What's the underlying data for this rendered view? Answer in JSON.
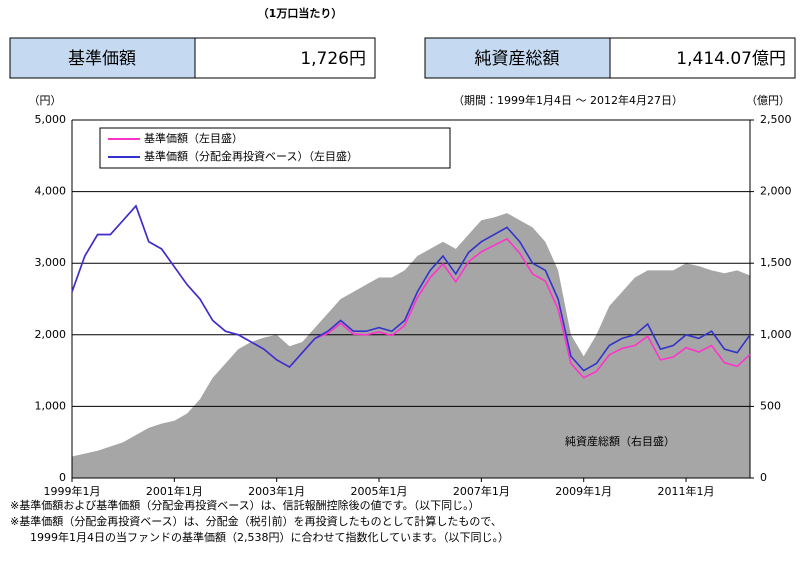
{
  "header": {
    "note": "（1万口当たり）",
    "items": [
      {
        "label": "基準価額",
        "value": "1,726円"
      },
      {
        "label": "純資産総額",
        "value": "1,414.07億円"
      }
    ]
  },
  "chart_data": {
    "type": "line",
    "subtitle": "（期間：1999年1月4日 ～ 2012年4月27日）",
    "ylabel": "（円）",
    "y2label": "（億円）",
    "x": [
      "1999-01",
      "1999-04",
      "1999-07",
      "1999-10",
      "2000-01",
      "2000-04",
      "2000-07",
      "2000-10",
      "2001-01",
      "2001-04",
      "2001-07",
      "2001-10",
      "2002-01",
      "2002-04",
      "2002-07",
      "2002-10",
      "2003-01",
      "2003-04",
      "2003-07",
      "2003-10",
      "2004-01",
      "2004-04",
      "2004-07",
      "2004-10",
      "2005-01",
      "2005-04",
      "2005-07",
      "2005-10",
      "2006-01",
      "2006-04",
      "2006-07",
      "2006-10",
      "2007-01",
      "2007-04",
      "2007-07",
      "2007-10",
      "2008-01",
      "2008-04",
      "2008-07",
      "2008-10",
      "2009-01",
      "2009-04",
      "2009-07",
      "2009-10",
      "2010-01",
      "2010-04",
      "2010-07",
      "2010-10",
      "2011-01",
      "2011-04",
      "2011-07",
      "2011-10",
      "2012-01",
      "2012-04"
    ],
    "xlim": [
      "1999-01",
      "2012-04"
    ],
    "xticks": [
      {
        "value": "1999-01",
        "label": "1999年1月"
      },
      {
        "value": "2001-01",
        "label": "2001年1月"
      },
      {
        "value": "2003-01",
        "label": "2003年1月"
      },
      {
        "value": "2005-01",
        "label": "2005年1月"
      },
      {
        "value": "2007-01",
        "label": "2007年1月"
      },
      {
        "value": "2009-01",
        "label": "2009年1月"
      },
      {
        "value": "2011-01",
        "label": "2011年1月"
      }
    ],
    "ylim": [
      0,
      5000
    ],
    "yticks": [
      0,
      {
        "value": 1000,
        "label": "1,000"
      },
      {
        "value": 2000,
        "label": "2,000"
      },
      {
        "value": 3000,
        "label": "3,000"
      },
      {
        "value": 4000,
        "label": "4,000"
      },
      {
        "value": 5000,
        "label": "5,000"
      }
    ],
    "y2lim": [
      0,
      2500
    ],
    "y2ticks": [
      0,
      500,
      {
        "value": 1000,
        "label": "1,000"
      },
      {
        "value": 1500,
        "label": "1,500"
      },
      {
        "value": 2000,
        "label": "2,000"
      },
      {
        "value": 2500,
        "label": "2,500"
      }
    ],
    "grid": true,
    "series": [
      {
        "name": "基準価額（左目盛）",
        "color": "#ff33cc",
        "values": [
          2600,
          3100,
          3400,
          3400,
          3600,
          3800,
          3300,
          3200,
          2950,
          2700,
          2500,
          2200,
          2050,
          2000,
          1900,
          1800,
          1650,
          1550,
          1750,
          1950,
          2020,
          2160,
          2010,
          2000,
          2040,
          1990,
          2130,
          2520,
          2800,
          2990,
          2740,
          3020,
          3160,
          3250,
          3340,
          3140,
          2850,
          2750,
          2360,
          1600,
          1400,
          1490,
          1720,
          1810,
          1850,
          1980,
          1650,
          1690,
          1820,
          1760,
          1850,
          1610,
          1560,
          1726
        ]
      },
      {
        "name": "基準価額（分配金再投資ベース）（左目盛）",
        "color": "#3333cc",
        "values": [
          2600,
          3100,
          3400,
          3400,
          3600,
          3800,
          3300,
          3200,
          2950,
          2700,
          2500,
          2200,
          2050,
          2000,
          1900,
          1800,
          1650,
          1550,
          1750,
          1950,
          2050,
          2200,
          2050,
          2050,
          2100,
          2050,
          2200,
          2600,
          2900,
          3100,
          2850,
          3150,
          3300,
          3400,
          3500,
          3300,
          3000,
          2900,
          2500,
          1700,
          1500,
          1600,
          1850,
          1950,
          2000,
          2150,
          1800,
          1850,
          2000,
          1950,
          2050,
          1800,
          1750,
          2000
        ]
      },
      {
        "name": "純資産総額（右目盛）",
        "color": "#a6a6a6",
        "axis": "y2",
        "values": [
          150,
          170,
          190,
          220,
          250,
          300,
          350,
          380,
          400,
          450,
          550,
          700,
          800,
          900,
          950,
          980,
          1000,
          920,
          950,
          1050,
          1150,
          1250,
          1300,
          1350,
          1400,
          1400,
          1450,
          1550,
          1600,
          1650,
          1600,
          1700,
          1800,
          1820,
          1850,
          1800,
          1750,
          1650,
          1450,
          1000,
          850,
          1000,
          1200,
          1300,
          1400,
          1450,
          1450,
          1450,
          1500,
          1480,
          1450,
          1430,
          1450,
          1414.07
        ]
      }
    ],
    "notes": [
      "※基準価額および基準価額（分配金再投資ベース）は、信託報酬控除後の値です。（以下同じ。）",
      "※基準価額（分配金再投資ベース）は、分配金（税引前）を再投資したものとして計算したもので、",
      "1999年1月4日の当ファンドの基準価額（2,538円）に合わせて指数化しています。（以下同じ。）"
    ]
  }
}
